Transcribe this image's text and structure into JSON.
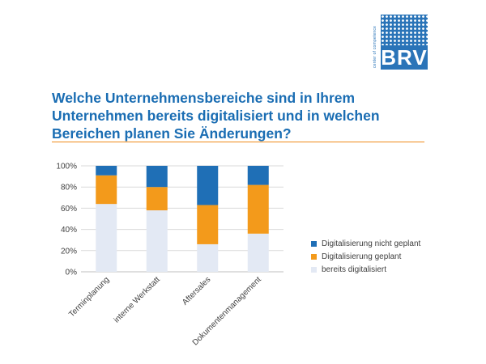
{
  "logo": {
    "text": "BRV",
    "side_text": "center of competence"
  },
  "title": "Welche Unternehmensbereiche sind in Ihrem Unternehmen bereits digitalisiert und in welchen Bereichen planen Sie Änderungen?",
  "colors": {
    "title": "#1a6db3",
    "rule": "#ef8a1a"
  },
  "chart_data": {
    "type": "bar",
    "stacked": true,
    "categories": [
      "Terminplanung",
      "interne Werkstatt",
      "Aftersales",
      "Dokumentenmanagement"
    ],
    "series": [
      {
        "name": "bereits digitalisiert",
        "color": "#e3e9f4",
        "values": [
          64,
          58,
          26,
          36
        ]
      },
      {
        "name": "Digitalisierung geplant",
        "color": "#f39a1b",
        "values": [
          27,
          22,
          37,
          46
        ]
      },
      {
        "name": "Digitalisierung nicht geplant",
        "color": "#1f6fb6",
        "values": [
          9,
          20,
          37,
          18
        ]
      }
    ],
    "yticks": [
      "0%",
      "20%",
      "40%",
      "60%",
      "80%",
      "100%"
    ],
    "ylim": [
      0,
      100
    ],
    "grid": true,
    "legend": {
      "position": "right",
      "order": [
        "Digitalisierung nicht geplant",
        "Digitalisierung geplant",
        "bereits digitalisiert"
      ]
    }
  }
}
